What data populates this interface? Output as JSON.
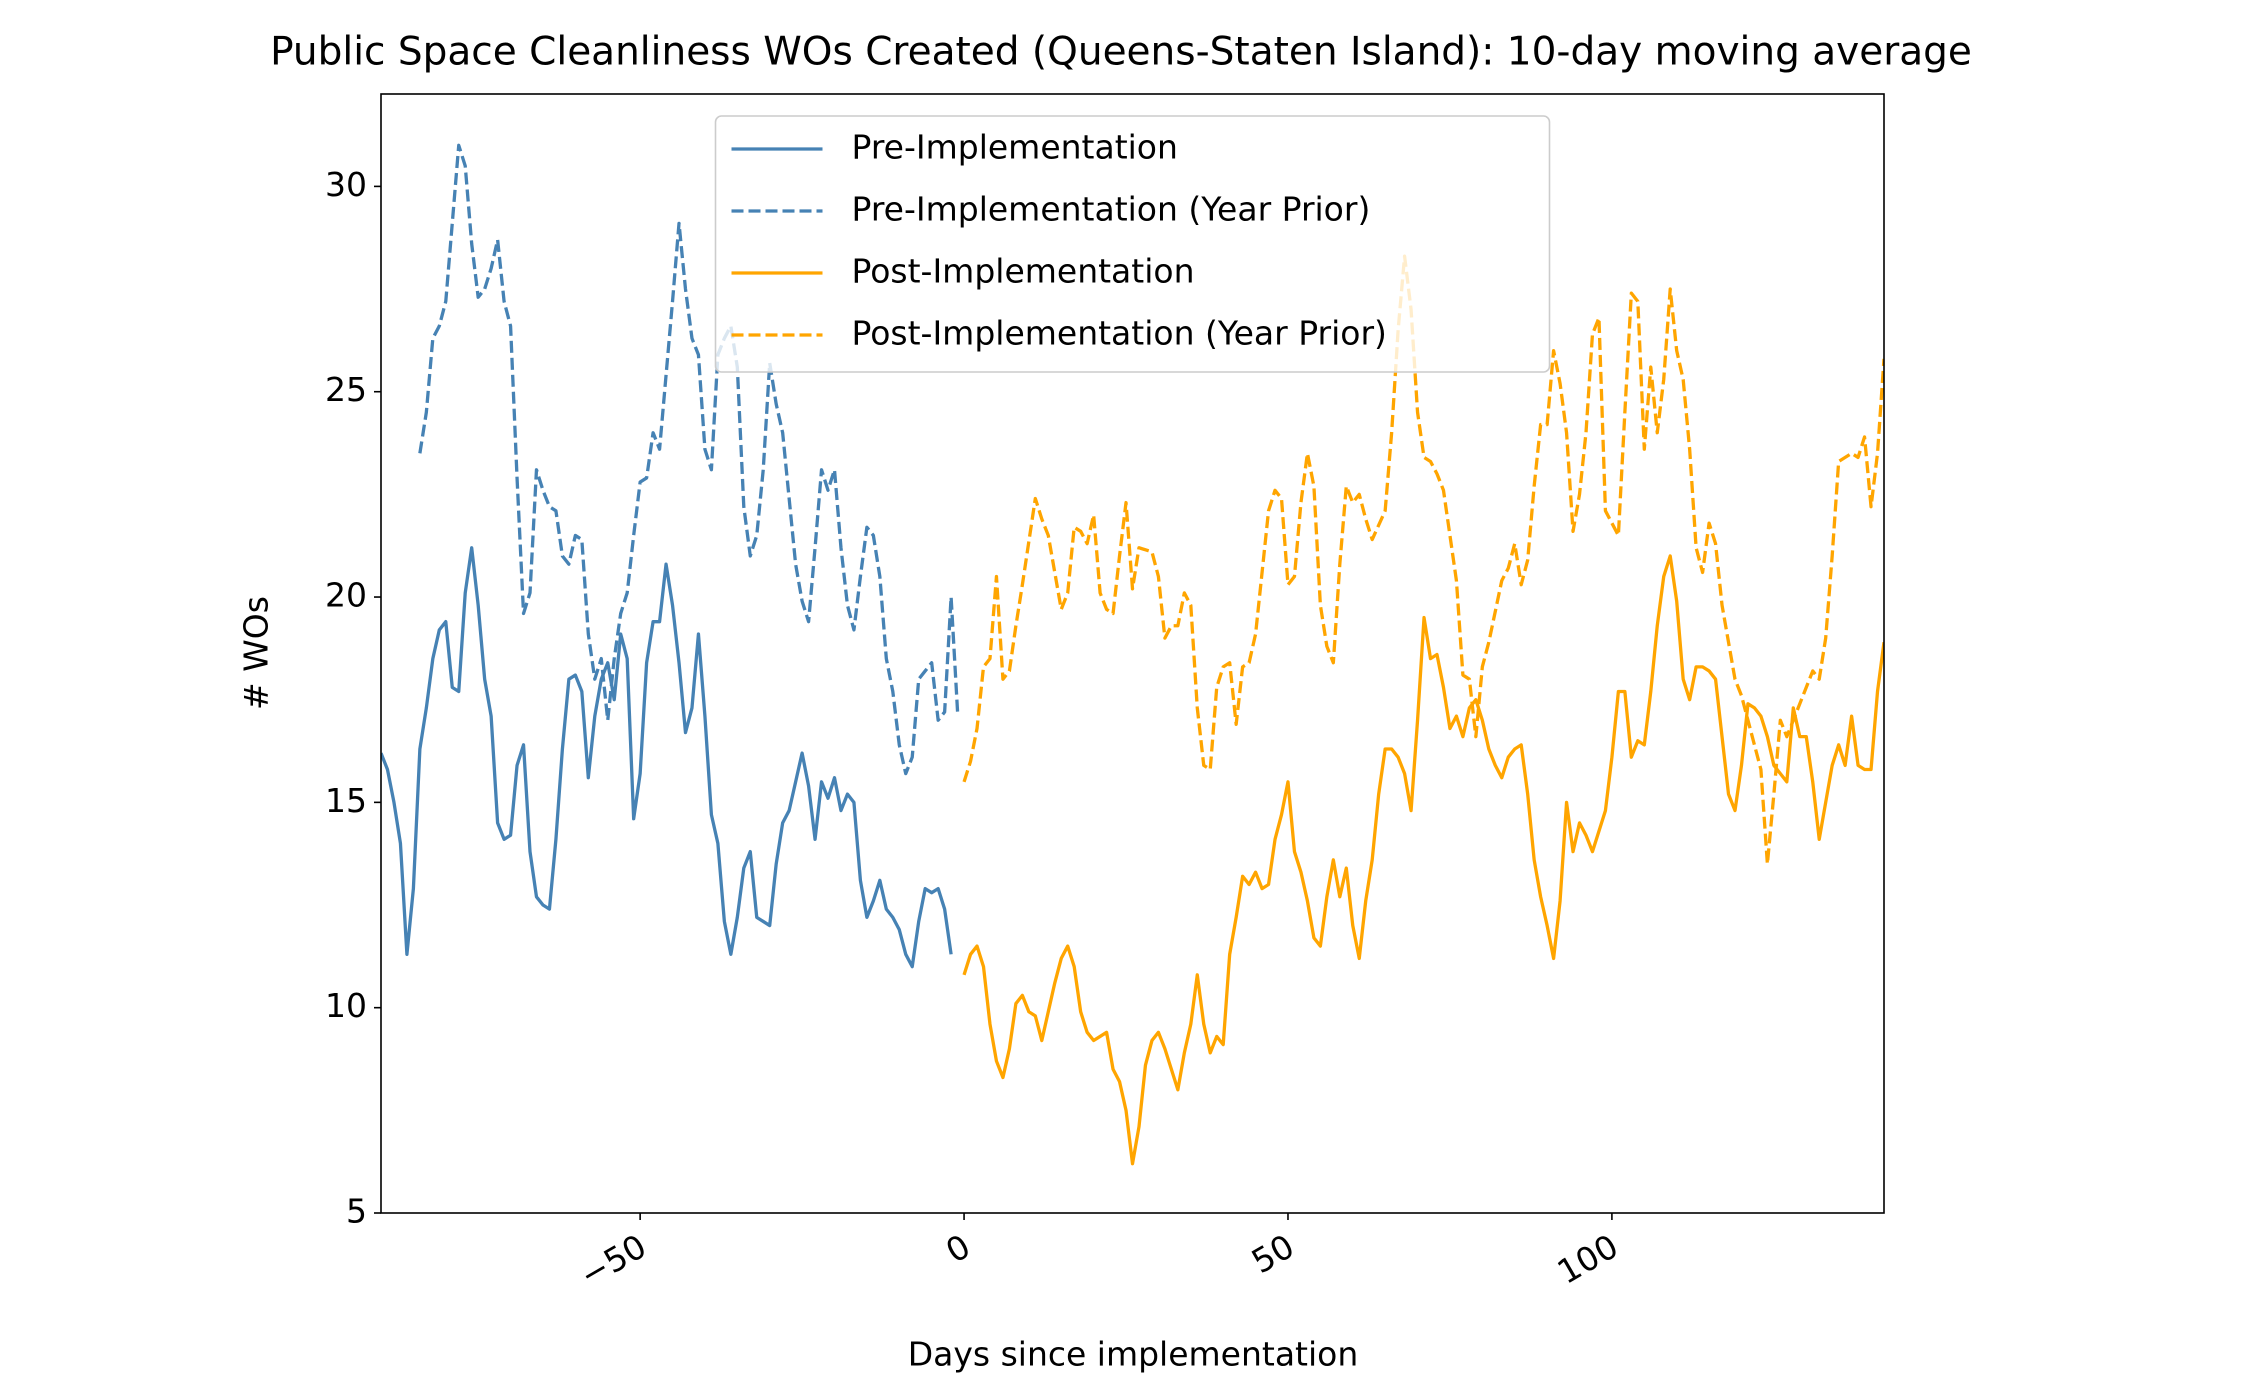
{
  "chart_data": {
    "type": "line",
    "title": "Public Space Cleanliness WOs Created (Queens-Staten Island): 10-day moving average",
    "x_label": "Days since implementation",
    "y_label": "# WOs",
    "xlim": [
      -90,
      142
    ],
    "ylim": [
      5,
      32.25
    ],
    "xticks": [
      {
        "value": -50,
        "label": "−50"
      },
      0,
      50,
      100
    ],
    "yticks": [
      5,
      10,
      15,
      20,
      25,
      30
    ],
    "grid": false,
    "legend": "upper center",
    "series": [
      {
        "name": "Pre-Implementation",
        "color": "#4682b4",
        "dashed": false,
        "x": [
          -90,
          -89,
          -88,
          -87,
          -86,
          -85,
          -84,
          -83,
          -82,
          -81,
          -80,
          -79,
          -78,
          -77,
          -76,
          -75,
          -74,
          -73,
          -72,
          -71,
          -70,
          -69,
          -68,
          -67,
          -66,
          -65,
          -64,
          -63,
          -62,
          -61,
          -60,
          -59,
          -58,
          -57,
          -56,
          -55,
          -54,
          -53,
          -52,
          -51,
          -50,
          -49,
          -48,
          -47,
          -46,
          -45,
          -44,
          -43,
          -42,
          -41,
          -40,
          -39,
          -38,
          -37,
          -36,
          -35,
          -34,
          -33,
          -32,
          -31,
          -30,
          -29,
          -28,
          -27,
          -26,
          -25,
          -24,
          -23,
          -22,
          -21,
          -20,
          -19,
          -18,
          -17,
          -16,
          -15,
          -14,
          -13,
          -12,
          -11,
          -10,
          -9,
          -8,
          -7,
          -6,
          -5,
          -4,
          -3,
          -2
        ],
        "values": [
          16.2,
          15.8,
          15.0,
          14.0,
          11.3,
          12.9,
          16.3,
          17.3,
          18.5,
          19.2,
          19.4,
          17.8,
          17.7,
          20.1,
          21.2,
          19.8,
          18.0,
          17.1,
          14.5,
          14.1,
          14.2,
          15.9,
          16.4,
          13.8,
          12.7,
          12.5,
          12.4,
          14.1,
          16.3,
          18.0,
          18.1,
          17.7,
          15.6,
          17.1,
          18.0,
          18.4,
          17.5,
          19.1,
          18.5,
          14.6,
          15.7,
          18.4,
          19.4,
          19.4,
          20.8,
          19.8,
          18.4,
          16.7,
          17.3,
          19.1,
          17.1,
          14.7,
          14.0,
          12.1,
          11.3,
          12.2,
          13.4,
          13.8,
          12.2,
          12.1,
          12.0,
          13.5,
          14.5,
          14.8,
          15.5,
          16.2,
          15.4,
          14.1,
          15.5,
          15.1,
          15.6,
          14.8,
          15.2,
          15.0,
          13.1,
          12.2,
          12.6,
          13.1,
          12.4,
          12.2,
          11.9,
          11.3,
          11.0,
          12.1,
          12.9,
          12.8,
          12.9,
          12.4,
          11.3
        ]
      },
      {
        "name": "Pre-Implementation (Year Prior)",
        "color": "#4682b4",
        "dashed": true,
        "x": [
          -84,
          -83,
          -82,
          -81,
          -80,
          -79,
          -78,
          -77,
          -76,
          -75,
          -74,
          -73,
          -72,
          -71,
          -70,
          -69,
          -68,
          -67,
          -66,
          -65,
          -64,
          -63,
          -62,
          -61,
          -60,
          -59,
          -58,
          -57,
          -56,
          -55,
          -54,
          -53,
          -52,
          -51,
          -50,
          -49,
          -48,
          -47,
          -46,
          -45,
          -44,
          -43,
          -42,
          -41,
          -40,
          -39,
          -38,
          -37,
          -36,
          -35,
          -34,
          -33,
          -32,
          -31,
          -30,
          -29,
          -28,
          -27,
          -26,
          -25,
          -24,
          -23,
          -22,
          -21,
          -20,
          -19,
          -18,
          -17,
          -16,
          -15,
          -14,
          -13,
          -12,
          -11,
          -10,
          -9,
          -8,
          -7,
          -6,
          -5,
          -4,
          -3,
          -2,
          -1
        ],
        "values": [
          23.5,
          24.5,
          26.3,
          26.6,
          27.2,
          29.1,
          31.0,
          30.5,
          28.6,
          27.3,
          27.5,
          28.0,
          28.7,
          27.2,
          26.6,
          22.9,
          19.6,
          20.1,
          23.1,
          22.6,
          22.2,
          22.1,
          21.0,
          20.8,
          21.5,
          21.4,
          19.1,
          18.0,
          18.5,
          17.0,
          18.5,
          19.6,
          20.1,
          21.5,
          22.8,
          22.9,
          24.0,
          23.6,
          25.4,
          27.2,
          29.1,
          27.5,
          26.3,
          25.9,
          23.6,
          23.1,
          25.9,
          26.3,
          26.6,
          25.6,
          22.2,
          21.0,
          21.5,
          23.1,
          25.7,
          24.7,
          24.0,
          22.4,
          20.8,
          19.9,
          19.4,
          21.2,
          23.1,
          22.6,
          23.1,
          21.2,
          19.8,
          19.2,
          20.5,
          21.7,
          21.5,
          20.5,
          18.5,
          17.7,
          16.4,
          15.7,
          16.1,
          18.0,
          18.2,
          18.4,
          17.0,
          17.2,
          20.0,
          17.2
        ]
      },
      {
        "name": "Post-Implementation",
        "color": "#ffa500",
        "dashed": false,
        "x": [
          0,
          1,
          2,
          3,
          4,
          5,
          6,
          7,
          8,
          9,
          10,
          11,
          12,
          13,
          14,
          15,
          16,
          17,
          18,
          19,
          20,
          21,
          22,
          23,
          24,
          25,
          26,
          27,
          28,
          29,
          30,
          31,
          32,
          33,
          34,
          35,
          36,
          37,
          38,
          39,
          40,
          41,
          42,
          43,
          44,
          45,
          46,
          47,
          48,
          49,
          50,
          51,
          52,
          53,
          54,
          55,
          56,
          57,
          58,
          59,
          60,
          61,
          62,
          63,
          64,
          65,
          66,
          67,
          68,
          69,
          70,
          71,
          72,
          73,
          74,
          75,
          76,
          77,
          78,
          79,
          80,
          81,
          82,
          83,
          84,
          85,
          86,
          87,
          88,
          89,
          90,
          91,
          92,
          93,
          94,
          95,
          96,
          97,
          98,
          99,
          100,
          101,
          102,
          103,
          104,
          105,
          106,
          107,
          108,
          109,
          110,
          111,
          112,
          113,
          114,
          115,
          116,
          117,
          118,
          119,
          120,
          121,
          122,
          123,
          124,
          125,
          126,
          127,
          128,
          129,
          130,
          131,
          132,
          133,
          134,
          135,
          136,
          137,
          138,
          139,
          140,
          141,
          142
        ],
        "values": [
          10.8,
          11.3,
          11.5,
          11.0,
          9.6,
          8.7,
          8.3,
          9.0,
          10.1,
          10.3,
          9.9,
          9.8,
          9.2,
          9.9,
          10.6,
          11.2,
          11.5,
          11.0,
          9.9,
          9.4,
          9.2,
          9.3,
          9.4,
          8.5,
          8.2,
          7.5,
          6.2,
          7.1,
          8.6,
          9.2,
          9.4,
          9.0,
          8.5,
          8.0,
          8.9,
          9.6,
          10.8,
          9.6,
          8.9,
          9.3,
          9.1,
          11.3,
          12.2,
          13.2,
          13.0,
          13.3,
          12.9,
          13.0,
          14.1,
          14.7,
          15.5,
          13.8,
          13.3,
          12.6,
          11.7,
          11.5,
          12.7,
          13.6,
          12.7,
          13.4,
          12.0,
          11.2,
          12.6,
          13.6,
          15.2,
          16.3,
          16.3,
          16.1,
          15.7,
          14.8,
          17.0,
          19.5,
          18.5,
          18.6,
          17.8,
          16.8,
          17.1,
          16.6,
          17.3,
          17.5,
          17.0,
          16.3,
          15.9,
          15.6,
          16.1,
          16.3,
          16.4,
          15.2,
          13.6,
          12.7,
          12.0,
          11.2,
          12.6,
          15.0,
          13.8,
          14.5,
          14.2,
          13.8,
          14.3,
          14.8,
          16.1,
          17.7,
          17.7,
          16.1,
          16.5,
          16.4,
          17.7,
          19.3,
          20.5,
          21.0,
          19.9,
          18.0,
          17.5,
          18.3,
          18.3,
          18.2,
          18.0,
          16.6,
          15.2,
          14.8,
          15.9,
          17.4,
          17.3,
          17.1,
          16.6,
          15.9,
          15.7,
          15.5,
          17.3,
          16.6,
          16.6,
          15.5,
          14.1,
          15.0,
          15.9,
          16.4,
          15.9,
          17.1,
          15.9,
          15.8,
          15.8,
          17.7,
          18.9
        ]
      },
      {
        "name": "Post-Implementation (Year Prior)",
        "color": "#ffa500",
        "dashed": true,
        "x": [
          0,
          1,
          2,
          3,
          4,
          5,
          6,
          7,
          8,
          9,
          11,
          12,
          13,
          14,
          15,
          16,
          17,
          18,
          19,
          20,
          21,
          22,
          23,
          24,
          25,
          26,
          27,
          29,
          30,
          31,
          32,
          33,
          34,
          35,
          36,
          37,
          38,
          39,
          40,
          41,
          42,
          43,
          44,
          45,
          47,
          48,
          49,
          50,
          51,
          52,
          53,
          54,
          55,
          56,
          57,
          58,
          59,
          60,
          61,
          62,
          63,
          65,
          66,
          67,
          68,
          69,
          70,
          71,
          72,
          73,
          74,
          75,
          76,
          77,
          78,
          79,
          80,
          81,
          83,
          84,
          85,
          86,
          87,
          88,
          89,
          90,
          91,
          92,
          93,
          94,
          95,
          96,
          97,
          98,
          99,
          101,
          102,
          103,
          104,
          105,
          106,
          107,
          108,
          109,
          110,
          111,
          112,
          113,
          114,
          115,
          116,
          117,
          119,
          120,
          121,
          122,
          123,
          124,
          125,
          126,
          127,
          128,
          129,
          130,
          131,
          132,
          133,
          134,
          135,
          137,
          138,
          139,
          140,
          141,
          142
        ],
        "values": [
          15.5,
          16.0,
          16.8,
          18.3,
          18.5,
          20.5,
          18.0,
          18.2,
          19.3,
          20.3,
          22.4,
          21.9,
          21.5,
          20.6,
          19.7,
          20.1,
          21.7,
          21.6,
          21.3,
          22.0,
          20.1,
          19.7,
          19.6,
          21.0,
          22.3,
          20.2,
          21.2,
          21.1,
          20.5,
          19.0,
          19.3,
          19.3,
          20.1,
          19.8,
          17.3,
          15.9,
          15.8,
          17.8,
          18.3,
          18.4,
          16.9,
          18.3,
          18.4,
          19.1,
          22.1,
          22.6,
          22.4,
          20.3,
          20.5,
          22.3,
          23.5,
          22.7,
          19.8,
          18.8,
          18.4,
          20.8,
          22.7,
          22.3,
          22.5,
          21.9,
          21.4,
          22.1,
          24.0,
          26.5,
          28.3,
          27.0,
          24.5,
          23.4,
          23.3,
          23.0,
          22.6,
          21.5,
          20.4,
          18.1,
          18.0,
          16.6,
          18.3,
          18.9,
          20.4,
          20.7,
          21.3,
          20.3,
          20.9,
          22.7,
          24.2,
          24.2,
          26.0,
          25.2,
          24.0,
          21.6,
          22.5,
          24.0,
          26.4,
          26.8,
          22.1,
          21.5,
          24.5,
          27.4,
          27.2,
          23.6,
          25.6,
          24.0,
          25.3,
          27.5,
          26.0,
          25.3,
          23.6,
          21.2,
          20.6,
          21.8,
          21.3,
          19.8,
          18.0,
          17.6,
          17.0,
          16.4,
          15.8,
          13.5,
          15.2,
          17.0,
          16.6,
          17.0,
          17.4,
          17.8,
          18.2,
          18.0,
          19.0,
          21.0,
          23.3,
          23.5,
          23.4,
          23.9,
          22.2,
          23.5,
          25.8
        ]
      }
    ]
  }
}
